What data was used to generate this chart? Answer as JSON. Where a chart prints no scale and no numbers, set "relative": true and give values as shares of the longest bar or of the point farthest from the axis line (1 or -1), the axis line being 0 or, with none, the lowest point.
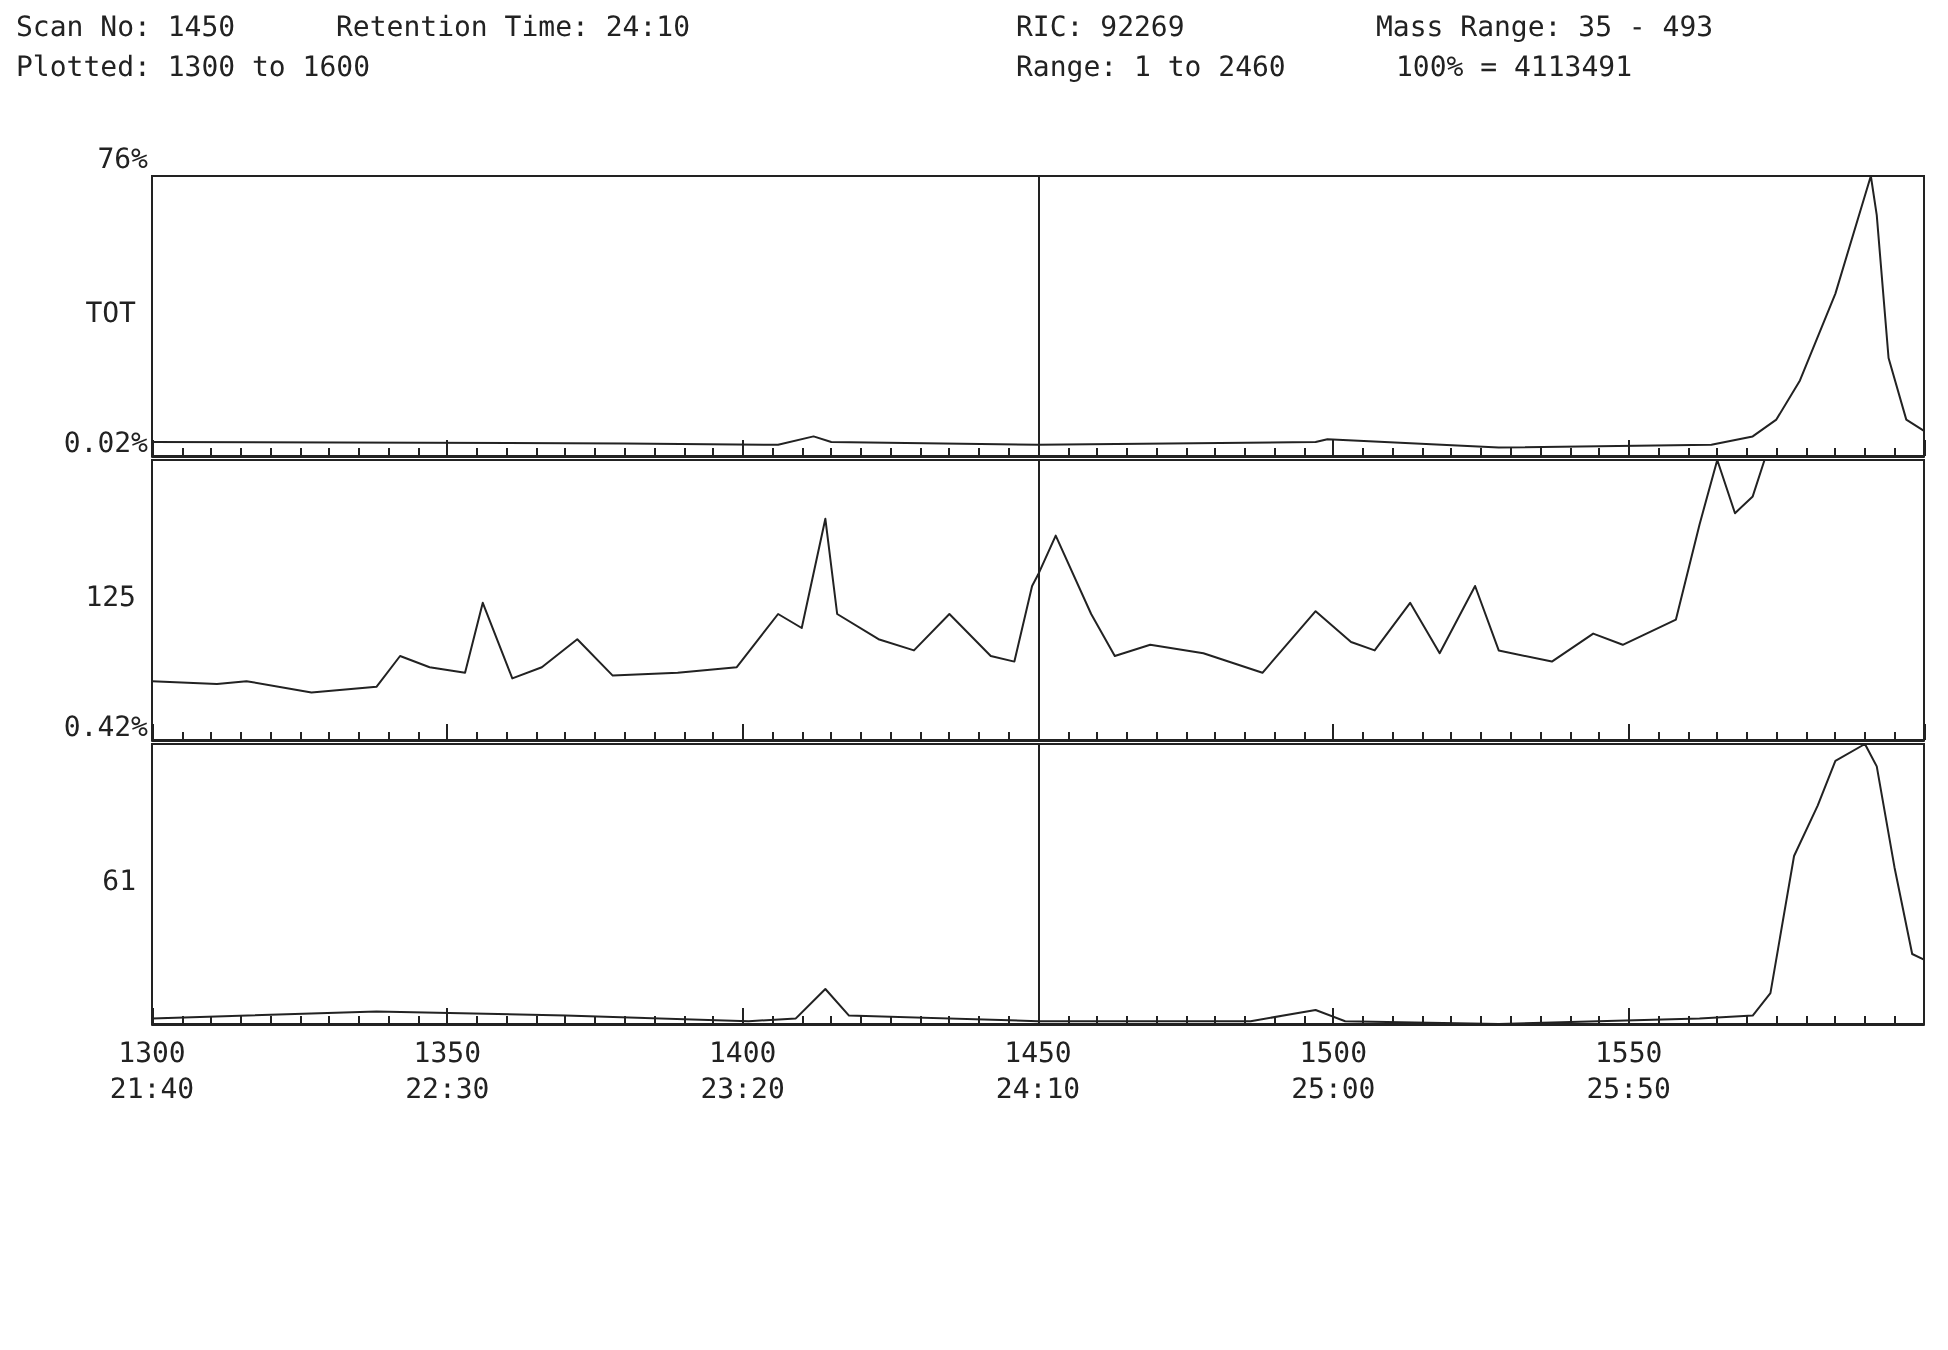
{
  "chart_data": [
    {
      "type": "line",
      "relative": true,
      "ylabel": "TOT",
      "color": "#222222",
      "xlim": [
        1300,
        1600
      ],
      "tick_labels": false,
      "marker": "none",
      "line_style": "solid",
      "ref_lines": [
        {
          "axis": "x",
          "value": 1450,
          "label": null,
          "color": "#222222"
        }
      ],
      "annotations": [
        "Scan No: 1450",
        "Retention Time: 24:10",
        "RIC: 92269",
        "Mass Range: 35 - 493",
        "Plotted: 1300 to 1600",
        "Range: 1 to 2460",
        "100% = 4113491",
        "76%"
      ],
      "x": [
        1300,
        1380,
        1406,
        1412,
        1415,
        1450,
        1497,
        1499,
        1528,
        1564,
        1571,
        1575,
        1579,
        1585,
        1591,
        1592,
        1594,
        1597,
        1600
      ],
      "values": [
        0.05,
        0.045,
        0.04,
        0.07,
        0.05,
        0.04,
        0.05,
        0.06,
        0.03,
        0.04,
        0.07,
        0.13,
        0.27,
        0.58,
        1.0,
        0.86,
        0.35,
        0.13,
        0.09
      ]
    },
    {
      "type": "line",
      "relative": true,
      "ylabel": "125",
      "color": "#222222",
      "xlim": [
        1300,
        1600
      ],
      "tick_labels": false,
      "marker": "none",
      "line_style": "solid",
      "ref_lines": [
        {
          "axis": "x",
          "value": 1450,
          "label": null,
          "color": "#222222"
        }
      ],
      "annotations": [
        "0.02%"
      ],
      "x": [
        1300,
        1311,
        1316,
        1327,
        1338,
        1342,
        1347,
        1353,
        1356,
        1361,
        1366,
        1372,
        1378,
        1389,
        1399,
        1406,
        1410,
        1414,
        1416,
        1423,
        1429,
        1435,
        1442,
        1446,
        1449,
        1450,
        1453,
        1459,
        1463,
        1469,
        1478,
        1488,
        1497,
        1503,
        1507,
        1513,
        1518,
        1524,
        1528,
        1537,
        1544,
        1549,
        1558,
        1562,
        1565,
        1568,
        1571,
        1573,
        1600
      ],
      "values": [
        0.21,
        0.2,
        0.21,
        0.17,
        0.19,
        0.3,
        0.26,
        0.24,
        0.49,
        0.22,
        0.26,
        0.36,
        0.23,
        0.24,
        0.26,
        0.45,
        0.4,
        0.79,
        0.45,
        0.36,
        0.32,
        0.45,
        0.3,
        0.28,
        0.55,
        0.59,
        0.73,
        0.45,
        0.3,
        0.34,
        0.31,
        0.24,
        0.46,
        0.35,
        0.32,
        0.49,
        0.31,
        0.55,
        0.32,
        0.28,
        0.38,
        0.34,
        0.43,
        0.77,
        1.0,
        0.81,
        0.87,
        1.0,
        1.0
      ]
    },
    {
      "type": "line",
      "relative": true,
      "ylabel": "61",
      "color": "#222222",
      "xlim": [
        1300,
        1600
      ],
      "xticks": [
        1300,
        1350,
        1400,
        1450,
        1500,
        1550
      ],
      "x2lim": [
        1300,
        1600
      ],
      "x2ticks": [
        {
          "value": 1300,
          "label": "21:40"
        },
        {
          "value": 1350,
          "label": "22:30"
        },
        {
          "value": 1400,
          "label": "23:20"
        },
        {
          "value": 1450,
          "label": "24:10"
        },
        {
          "value": 1500,
          "label": "25:00"
        },
        {
          "value": 1550,
          "label": "25:50"
        }
      ],
      "marker": "none",
      "line_style": "solid",
      "ref_lines": [
        {
          "axis": "x",
          "value": 1450,
          "label": null,
          "color": "#222222"
        }
      ],
      "annotations": [
        "0.42%"
      ],
      "x": [
        1300,
        1338,
        1370,
        1401,
        1409,
        1414,
        1418,
        1450,
        1486,
        1497,
        1502,
        1528,
        1562,
        1571,
        1574,
        1578,
        1582,
        1585,
        1590,
        1592,
        1595,
        1598,
        1600
      ],
      "values": [
        0.02,
        0.045,
        0.03,
        0.01,
        0.02,
        0.125,
        0.03,
        0.01,
        0.01,
        0.05,
        0.01,
        0.0,
        0.02,
        0.03,
        0.11,
        0.6,
        0.78,
        0.94,
        1.0,
        0.92,
        0.56,
        0.25,
        0.23
      ]
    }
  ]
}
